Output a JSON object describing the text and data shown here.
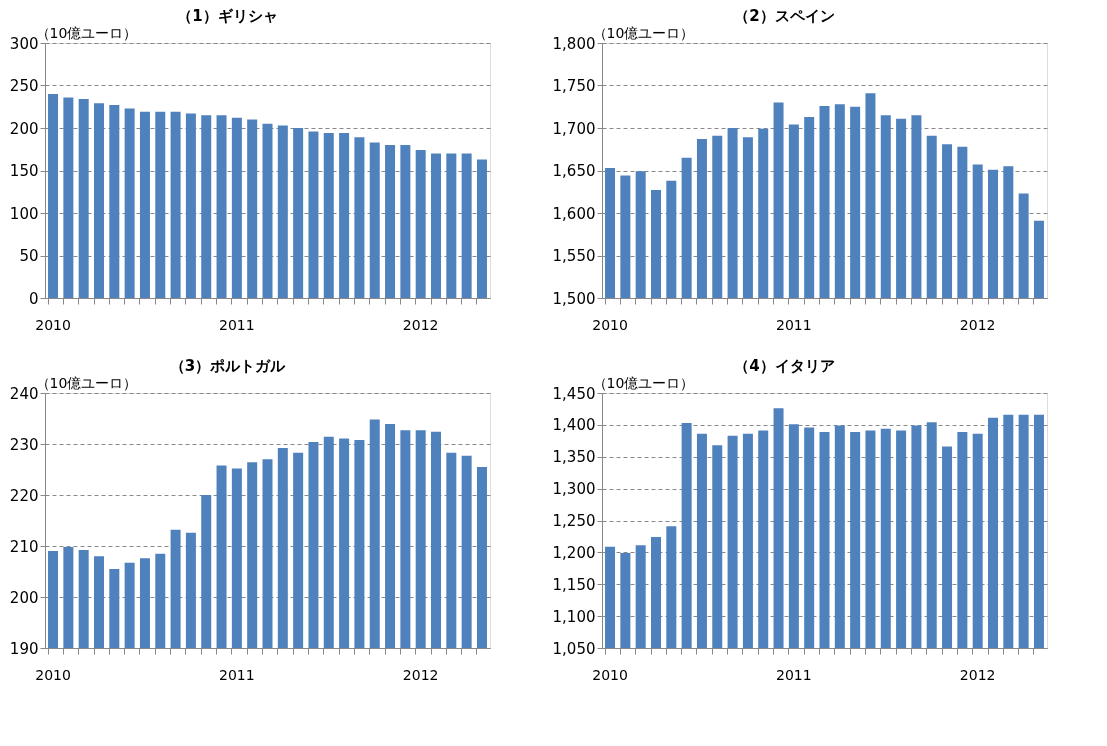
{
  "chart_data": [
    {
      "type": "bar",
      "title": "（1）ギリシャ",
      "ylabel": "（10億ユーロ）",
      "categories": [
        "2010",
        null,
        null,
        null,
        null,
        null,
        null,
        null,
        null,
        null,
        null,
        null,
        "2011",
        null,
        null,
        null,
        null,
        null,
        null,
        null,
        null,
        null,
        null,
        null,
        "2012",
        null,
        null,
        null,
        null
      ],
      "values": [
        240,
        236,
        234,
        229,
        227,
        223,
        219,
        219,
        219,
        217,
        215,
        215,
        212,
        210,
        205,
        203,
        200,
        196,
        194,
        194,
        189,
        183,
        180,
        180,
        174,
        170,
        170,
        170,
        163
      ],
      "color": "#4f81bd",
      "ylim": [
        0,
        300
      ],
      "yticks": [
        0,
        50,
        100,
        150,
        200,
        250,
        300
      ],
      "grid": "y"
    },
    {
      "type": "bar",
      "title": "（2）スペイン",
      "ylabel": "（10億ユーロ）",
      "categories": [
        "2010",
        null,
        null,
        null,
        null,
        null,
        null,
        null,
        null,
        null,
        null,
        null,
        "2011",
        null,
        null,
        null,
        null,
        null,
        null,
        null,
        null,
        null,
        null,
        null,
        "2012",
        null,
        null,
        null,
        null
      ],
      "values": [
        1653,
        1644,
        1649,
        1627,
        1638,
        1665,
        1687,
        1691,
        1700,
        1689,
        1699,
        1730,
        1704,
        1713,
        1726,
        1728,
        1725,
        1741,
        1715,
        1711,
        1715,
        1691,
        1681,
        1678,
        1657,
        1651,
        1655,
        1623,
        1591
      ],
      "color": "#4f81bd",
      "ylim": [
        1500,
        1800
      ],
      "yticks": [
        {
          "value": 1500,
          "label": "1,500"
        },
        {
          "value": 1550,
          "label": "1,550"
        },
        {
          "value": 1600,
          "label": "1,600"
        },
        {
          "value": 1650,
          "label": "1,650"
        },
        {
          "value": 1700,
          "label": "1,700"
        },
        {
          "value": 1750,
          "label": "1,750"
        },
        {
          "value": 1800,
          "label": "1,800"
        }
      ],
      "grid": "y"
    },
    {
      "type": "bar",
      "title": "（3）ポルトガル",
      "ylabel": "（10億ユーロ）",
      "categories": [
        "2010",
        null,
        null,
        null,
        null,
        null,
        null,
        null,
        null,
        null,
        null,
        null,
        "2011",
        null,
        null,
        null,
        null,
        null,
        null,
        null,
        null,
        null,
        null,
        null,
        "2012",
        null,
        null,
        null,
        null
      ],
      "values": [
        209,
        209.8,
        209.2,
        208,
        205.5,
        206.7,
        207.6,
        208.5,
        213.2,
        212.6,
        220,
        225.8,
        225.2,
        226.4,
        227,
        229.2,
        228.3,
        230.4,
        231.4,
        231.1,
        230.8,
        234.8,
        233.9,
        232.7,
        232.7,
        232.4,
        228.3,
        227.7,
        225.5
      ],
      "color": "#4f81bd",
      "ylim": [
        190,
        240
      ],
      "yticks": [
        190,
        200,
        210,
        220,
        230,
        240
      ],
      "grid": "y"
    },
    {
      "type": "bar",
      "title": "（4）イタリア",
      "ylabel": "（10億ユーロ）",
      "categories": [
        "2010",
        null,
        null,
        null,
        null,
        null,
        null,
        null,
        null,
        null,
        null,
        null,
        "2011",
        null,
        null,
        null,
        null,
        null,
        null,
        null,
        null,
        null,
        null,
        null,
        "2012",
        null,
        null,
        null,
        null
      ],
      "values": [
        1209,
        1199,
        1211,
        1224,
        1241,
        1403,
        1386,
        1368,
        1383,
        1386,
        1391,
        1426,
        1401,
        1396,
        1389,
        1399,
        1389,
        1391,
        1394,
        1391,
        1399,
        1404,
        1366,
        1389,
        1386,
        1411,
        1416,
        1416,
        1416
      ],
      "color": "#4f81bd",
      "ylim": [
        1050,
        1450
      ],
      "yticks": [
        {
          "value": 1050,
          "label": "1,050"
        },
        {
          "value": 1100,
          "label": "1,100"
        },
        {
          "value": 1150,
          "label": "1,150"
        },
        {
          "value": 1200,
          "label": "1,200"
        },
        {
          "value": 1250,
          "label": "1,250"
        },
        {
          "value": 1300,
          "label": "1,300"
        },
        {
          "value": 1350,
          "label": "1,350"
        },
        {
          "value": 1400,
          "label": "1,400"
        },
        {
          "value": 1450,
          "label": "1,450"
        }
      ],
      "grid": "y"
    }
  ]
}
